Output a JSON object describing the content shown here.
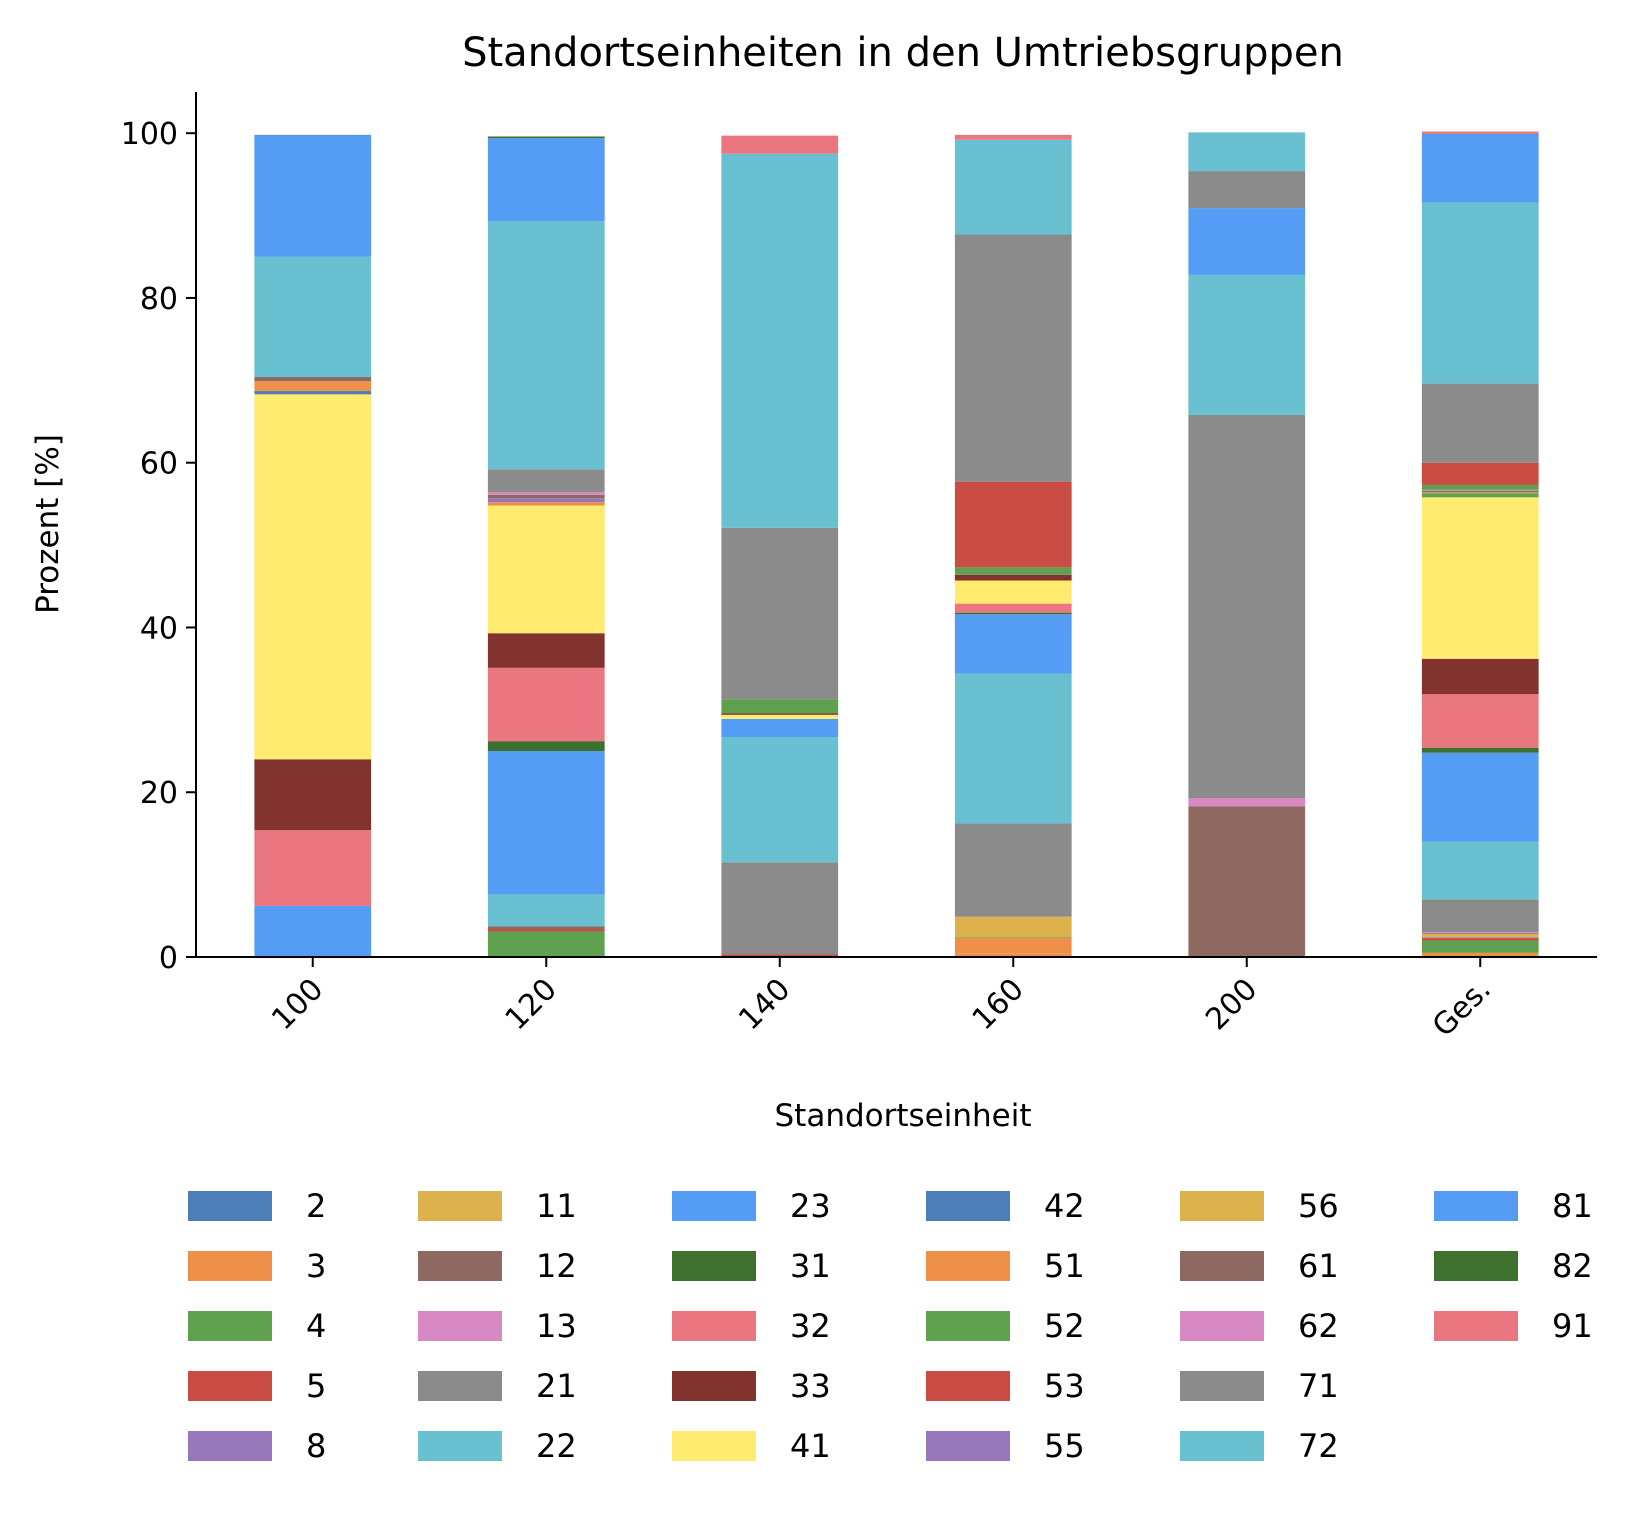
{
  "chart_data": {
    "type": "bar",
    "stacked": true,
    "title": "Standortseinheiten in den Umtriebsgruppen",
    "xlabel": "Standortseinheit",
    "ylabel": "Prozent [%]",
    "ylim": [
      0,
      105
    ],
    "yticks": [
      0,
      20,
      40,
      60,
      80,
      100
    ],
    "categories": [
      "100",
      "120",
      "140",
      "160",
      "200",
      "Ges."
    ],
    "grid": false,
    "legend_placement": "bottom",
    "series": [
      {
        "name": "2",
        "color": "#4c7fb8",
        "values": [
          0,
          0,
          0,
          0.1,
          0,
          0.1
        ]
      },
      {
        "name": "3",
        "color": "#ef904a",
        "values": [
          0,
          0,
          0,
          0.3,
          0,
          0.4
        ]
      },
      {
        "name": "4",
        "color": "#5fa14f",
        "values": [
          0,
          3.1,
          0,
          0,
          0,
          1.5
        ]
      },
      {
        "name": "5",
        "color": "#c94c45",
        "values": [
          0,
          0.3,
          0.3,
          0,
          0,
          0.3
        ]
      },
      {
        "name": "8",
        "color": "#9779bb",
        "values": [
          0,
          0,
          0,
          0,
          0,
          0.1
        ]
      },
      {
        "name": "11",
        "color": "#ddb24c",
        "values": [
          0,
          0,
          0,
          0,
          0,
          0.4
        ]
      },
      {
        "name": "12",
        "color": "#8e6961",
        "values": [
          0,
          0.3,
          0,
          0,
          0,
          0.1
        ]
      },
      {
        "name": "13",
        "color": "#d888c3",
        "values": [
          0,
          0,
          0,
          0,
          0,
          0.1
        ]
      },
      {
        "name": "21",
        "color": "#8b8b8b",
        "values": [
          0,
          0,
          11.2,
          0,
          0,
          4.0
        ]
      },
      {
        "name": "22",
        "color": "#68c0d0",
        "values": [
          0,
          3.9,
          15.2,
          0,
          0,
          7.0
        ]
      },
      {
        "name": "23",
        "color": "#549cf4",
        "values": [
          6.2,
          17.4,
          0,
          0,
          0,
          10.8
        ]
      },
      {
        "name": "31",
        "color": "#3e702f",
        "values": [
          0,
          1.2,
          0,
          0,
          0,
          0.6
        ]
      },
      {
        "name": "32",
        "color": "#ea7780",
        "values": [
          9.2,
          8.9,
          0,
          0,
          0,
          6.5
        ]
      },
      {
        "name": "33",
        "color": "#82332e",
        "values": [
          8.6,
          4.2,
          0,
          0,
          0,
          4.3
        ]
      },
      {
        "name": "41",
        "color": "#feeb6f",
        "values": [
          44.3,
          15.5,
          0,
          0,
          0,
          19.6
        ]
      },
      {
        "name": "42",
        "color": "#4c7fb8",
        "values": [
          0.4,
          0,
          0,
          0,
          0,
          0
        ]
      },
      {
        "name": "51",
        "color": "#ef904a",
        "values": [
          1.2,
          0.4,
          0,
          1.9,
          0,
          0
        ]
      },
      {
        "name": "52",
        "color": "#5fa14f",
        "values": [
          0,
          0,
          0,
          0.1,
          0,
          0.5
        ]
      },
      {
        "name": "53",
        "color": "#c94c45",
        "values": [
          0,
          0,
          0,
          0,
          0,
          0
        ]
      },
      {
        "name": "55",
        "color": "#9779bb",
        "values": [
          0,
          0.5,
          0,
          0,
          0,
          0
        ]
      },
      {
        "name": "56",
        "color": "#ddb24c",
        "values": [
          0,
          0,
          0,
          2.5,
          0,
          0.1
        ]
      },
      {
        "name": "61",
        "color": "#8e6961",
        "values": [
          0.5,
          0.4,
          0,
          0,
          18.3,
          0.2
        ]
      },
      {
        "name": "62",
        "color": "#d888c3",
        "values": [
          0,
          0.3,
          0,
          0,
          1.0,
          0.1
        ]
      },
      {
        "name": "71",
        "color": "#8b8b8b",
        "values": [
          0,
          2.8,
          0,
          11.3,
          0,
          0
        ]
      },
      {
        "name": "72",
        "color": "#68c0d0",
        "values": [
          14.6,
          30.1,
          0,
          18.2,
          0,
          0
        ]
      },
      {
        "name": "81",
        "color": "#549cf4",
        "values": [
          14.8,
          10.1,
          2.2,
          7.2,
          0,
          0
        ]
      },
      {
        "name": "82",
        "color": "#3e702f",
        "values": [
          0,
          0.2,
          0,
          0.2,
          0,
          0
        ]
      },
      {
        "name": "91",
        "color": "#ea7780",
        "values": [
          0,
          0,
          0,
          1.1,
          0,
          0
        ]
      },
      {
        "name": "41",
        "color": "#feeb6f",
        "values": [
          0,
          0,
          0.5,
          2.8,
          0,
          0
        ]
      },
      {
        "name": "33",
        "color": "#82332e",
        "values": [
          0,
          0,
          0.2,
          0.7,
          0,
          0
        ]
      },
      {
        "name": "52",
        "color": "#5fa14f",
        "values": [
          0,
          0,
          1.7,
          0.9,
          0,
          0.6
        ]
      },
      {
        "name": "53",
        "color": "#c94c45",
        "values": [
          0,
          0,
          0,
          10.4,
          0,
          2.7
        ]
      },
      {
        "name": "71",
        "color": "#8b8b8b",
        "values": [
          0,
          0,
          20.8,
          30.0,
          46.5,
          9.6
        ]
      },
      {
        "name": "72",
        "color": "#68c0d0",
        "values": [
          0,
          0,
          45.4,
          11.5,
          17.0,
          22.0
        ]
      },
      {
        "name": "81",
        "color": "#549cf4",
        "values": [
          0,
          0,
          0,
          0,
          8.1,
          8.3
        ]
      },
      {
        "name": "71",
        "color": "#8b8b8b",
        "values": [
          0,
          0,
          0,
          0,
          4.5,
          0
        ]
      },
      {
        "name": "72",
        "color": "#68c0d0",
        "values": [
          0,
          0,
          0,
          0,
          4.7,
          0
        ]
      },
      {
        "name": "91",
        "color": "#ea7780",
        "values": [
          0,
          0,
          2.2,
          0.6,
          0,
          0.3
        ]
      }
    ],
    "legend": [
      {
        "name": "2",
        "color": "#4c7fb8"
      },
      {
        "name": "3",
        "color": "#ef904a"
      },
      {
        "name": "4",
        "color": "#5fa14f"
      },
      {
        "name": "5",
        "color": "#c94c45"
      },
      {
        "name": "8",
        "color": "#9779bb"
      },
      {
        "name": "11",
        "color": "#ddb24c"
      },
      {
        "name": "12",
        "color": "#8e6961"
      },
      {
        "name": "13",
        "color": "#d888c3"
      },
      {
        "name": "21",
        "color": "#8b8b8b"
      },
      {
        "name": "22",
        "color": "#68c0d0"
      },
      {
        "name": "23",
        "color": "#549cf4"
      },
      {
        "name": "31",
        "color": "#3e702f"
      },
      {
        "name": "32",
        "color": "#ea7780"
      },
      {
        "name": "33",
        "color": "#82332e"
      },
      {
        "name": "41",
        "color": "#feeb6f"
      },
      {
        "name": "42",
        "color": "#4c7fb8"
      },
      {
        "name": "51",
        "color": "#ef904a"
      },
      {
        "name": "52",
        "color": "#5fa14f"
      },
      {
        "name": "53",
        "color": "#c94c45"
      },
      {
        "name": "55",
        "color": "#9779bb"
      },
      {
        "name": "56",
        "color": "#ddb24c"
      },
      {
        "name": "61",
        "color": "#8e6961"
      },
      {
        "name": "62",
        "color": "#d888c3"
      },
      {
        "name": "71",
        "color": "#8b8b8b"
      },
      {
        "name": "72",
        "color": "#68c0d0"
      },
      {
        "name": "81",
        "color": "#549cf4"
      },
      {
        "name": "82",
        "color": "#3e702f"
      },
      {
        "name": "91",
        "color": "#ea7780"
      }
    ]
  }
}
